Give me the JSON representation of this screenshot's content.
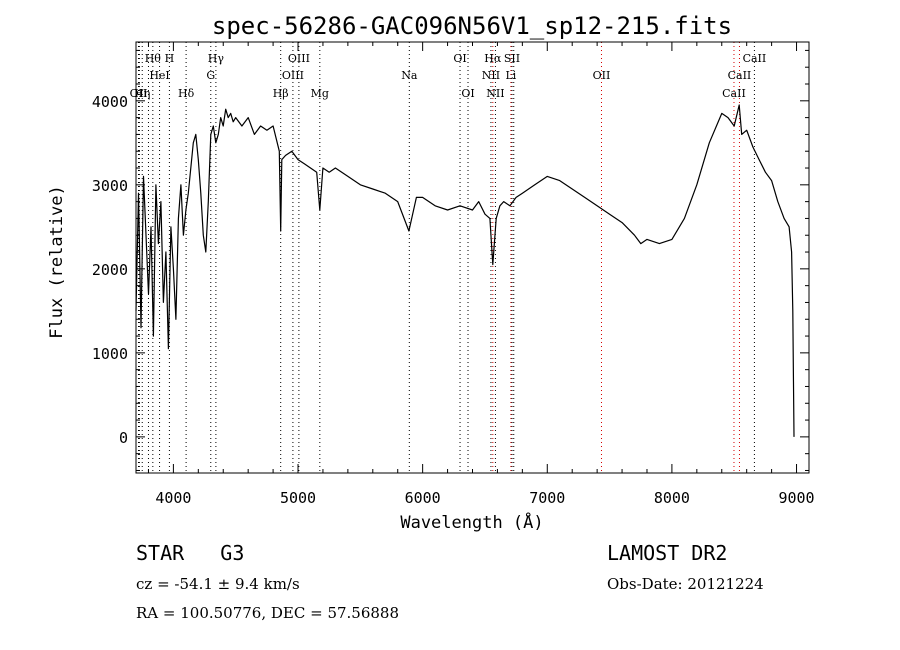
{
  "chart_data": {
    "type": "line",
    "title": "spec-56286-GAC096N56V1_sp12-215.fits",
    "xlabel": "Wavelength (Å)",
    "ylabel": "Flux (relative)",
    "xlim": [
      3700,
      9100
    ],
    "ylim": [
      -430,
      4700
    ],
    "xticks": [
      4000,
      5000,
      6000,
      7000,
      8000,
      9000
    ],
    "yticks": [
      0,
      1000,
      2000,
      3000,
      4000
    ],
    "grid": false,
    "series": [
      {
        "x": [
          3700,
          3720,
          3740,
          3760,
          3780,
          3800,
          3820,
          3840,
          3860,
          3880,
          3900,
          3920,
          3940,
          3960,
          3980,
          4000,
          4020,
          4040,
          4060,
          4080,
          4100,
          4120,
          4140,
          4160,
          4180,
          4200,
          4220,
          4240,
          4260,
          4280,
          4300,
          4320,
          4340,
          4360,
          4380,
          4400,
          4420,
          4440,
          4460,
          4480,
          4500,
          4550,
          4600,
          4650,
          4700,
          4750,
          4800,
          4850,
          4861,
          4870,
          4900,
          4950,
          5000,
          5050,
          5100,
          5150,
          5175,
          5200,
          5250,
          5300,
          5400,
          5500,
          5600,
          5700,
          5800,
          5890,
          5950,
          6000,
          6100,
          6200,
          6300,
          6400,
          6450,
          6500,
          6540,
          6563,
          6590,
          6620,
          6650,
          6700,
          6750,
          6800,
          6900,
          7000,
          7100,
          7200,
          7300,
          7400,
          7500,
          7600,
          7700,
          7750,
          7800,
          7900,
          8000,
          8100,
          8200,
          8300,
          8400,
          8450,
          8500,
          8540,
          8560,
          8600,
          8650,
          8700,
          8750,
          8800,
          8850,
          8900,
          8940,
          8960,
          8970,
          8980
        ],
        "y": [
          1500,
          2900,
          1300,
          3100,
          2400,
          1700,
          2500,
          1200,
          3000,
          2300,
          2800,
          1600,
          2200,
          1050,
          2500,
          2000,
          1400,
          2600,
          3000,
          2400,
          2700,
          2900,
          3200,
          3500,
          3600,
          3300,
          2900,
          2400,
          2200,
          2800,
          3600,
          3700,
          3500,
          3600,
          3800,
          3700,
          3900,
          3800,
          3850,
          3750,
          3800,
          3700,
          3800,
          3600,
          3700,
          3650,
          3700,
          3400,
          2450,
          3300,
          3350,
          3400,
          3300,
          3250,
          3200,
          3150,
          2700,
          3200,
          3150,
          3200,
          3100,
          3000,
          2950,
          2900,
          2800,
          2450,
          2850,
          2850,
          2750,
          2700,
          2750,
          2700,
          2800,
          2650,
          2600,
          2050,
          2600,
          2750,
          2800,
          2750,
          2850,
          2900,
          3000,
          3100,
          3050,
          2950,
          2850,
          2750,
          2650,
          2550,
          2400,
          2300,
          2350,
          2300,
          2350,
          2600,
          3000,
          3500,
          3850,
          3800,
          3700,
          3950,
          3600,
          3650,
          3450,
          3300,
          3150,
          3050,
          2800,
          2600,
          2500,
          2200,
          1500,
          0
        ]
      }
    ],
    "lines": [
      {
        "x": 3720,
        "label": "OII",
        "row": 3,
        "color": "#000000"
      },
      {
        "x": 3727,
        "label": "",
        "row": 0,
        "color": "#000000"
      },
      {
        "x": 3750,
        "label": "Hη",
        "row": 3,
        "color": "#000000"
      },
      {
        "x": 3800,
        "label": "",
        "row": 0,
        "color": "#000000"
      },
      {
        "x": 3835,
        "label": "Hθ",
        "row": 1,
        "color": "#000000"
      },
      {
        "x": 3889,
        "label": "HeI",
        "row": 2,
        "color": "#000000"
      },
      {
        "x": 3968,
        "label": "H",
        "row": 1,
        "color": "#000000"
      },
      {
        "x": 4102,
        "label": "Hδ",
        "row": 3,
        "color": "#000000"
      },
      {
        "x": 4300,
        "label": "G",
        "row": 2,
        "color": "#000000"
      },
      {
        "x": 4341,
        "label": "Hγ",
        "row": 1,
        "color": "#000000"
      },
      {
        "x": 4861,
        "label": "Hβ",
        "row": 3,
        "color": "#000000"
      },
      {
        "x": 4959,
        "label": "OIII",
        "row": 2,
        "color": "#000000"
      },
      {
        "x": 5007,
        "label": "OIII",
        "row": 1,
        "color": "#000000"
      },
      {
        "x": 5175,
        "label": "Mg",
        "row": 3,
        "color": "#000000"
      },
      {
        "x": 5893,
        "label": "Na",
        "row": 2,
        "color": "#000000"
      },
      {
        "x": 6300,
        "label": "OI",
        "row": 1,
        "color": "#000000"
      },
      {
        "x": 6364,
        "label": "OI",
        "row": 3,
        "color": "#000000"
      },
      {
        "x": 6548,
        "label": "NII",
        "row": 2,
        "color": "#000000"
      },
      {
        "x": 6563,
        "label": "Hα",
        "row": 1,
        "color": "#d40000"
      },
      {
        "x": 6584,
        "label": "NII",
        "row": 3,
        "color": "#000000"
      },
      {
        "x": 6708,
        "label": "Li",
        "row": 2,
        "color": "#d40000"
      },
      {
        "x": 6717,
        "label": "SII",
        "row": 1,
        "color": "#000000"
      },
      {
        "x": 6731,
        "label": "",
        "row": 0,
        "color": "#000000"
      },
      {
        "x": 7435,
        "label": "OII",
        "row": 2,
        "color": "#d40000"
      },
      {
        "x": 8498,
        "label": "CaII",
        "row": 3,
        "color": "#d40000"
      },
      {
        "x": 8542,
        "label": "CaII",
        "row": 2,
        "color": "#d40000"
      },
      {
        "x": 8662,
        "label": "CaII",
        "row": 1,
        "color": "#000000"
      }
    ]
  },
  "info": {
    "object": "STAR",
    "subclass": "G3",
    "survey": "LAMOST DR2",
    "redshift": "cz = -54.1 ± 9.4 km/s",
    "obs_date": "Obs-Date: 20121224",
    "coords": "RA = 100.50776, DEC =  57.56888"
  }
}
